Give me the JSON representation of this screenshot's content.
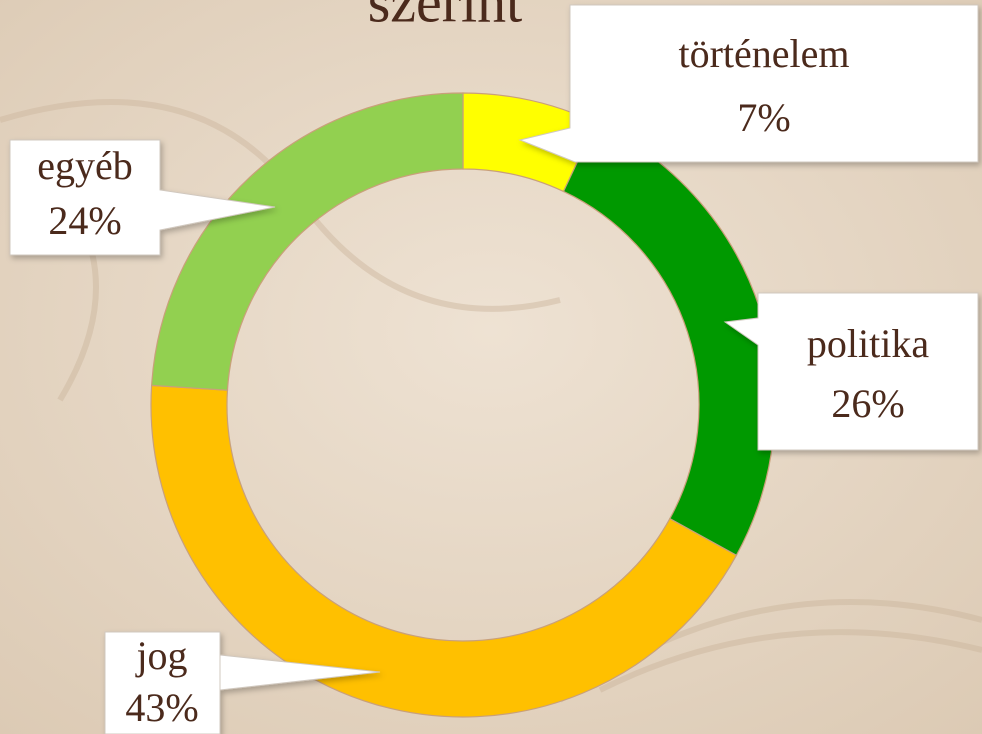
{
  "chart_data": {
    "type": "donut",
    "title": "szerint",
    "categories": [
      "történelem",
      "politika",
      "jog",
      "egyéb"
    ],
    "values": [
      7,
      26,
      43,
      24
    ],
    "value_labels": [
      "7%",
      "26%",
      "43%",
      "24%"
    ],
    "colors": [
      "#ffff00",
      "#009900",
      "#ffc000",
      "#92d050"
    ]
  }
}
